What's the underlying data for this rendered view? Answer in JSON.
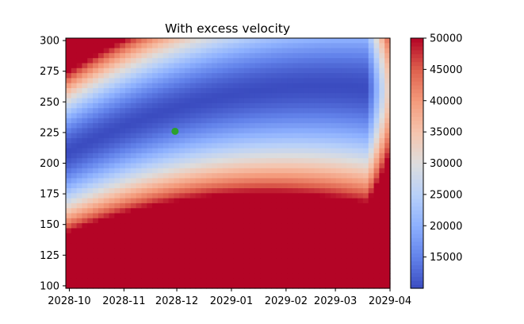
{
  "chart_data": {
    "type": "heatmap",
    "title": "With excess velocity",
    "xlabel": "",
    "ylabel": "",
    "x_range": [
      "2028-09-29",
      "2029-04-01"
    ],
    "x_ticks": [
      "2028-10",
      "2028-11",
      "2028-12",
      "2029-01",
      "2029-02",
      "2029-03",
      "2029-04"
    ],
    "y_range": [
      98,
      302
    ],
    "y_ticks": [
      100,
      125,
      150,
      175,
      200,
      225,
      250,
      275,
      300
    ],
    "colorbar": {
      "colormap": "coolwarm",
      "min": 10000,
      "max": 50000,
      "ticks": [
        15000,
        20000,
        25000,
        30000,
        35000,
        40000,
        45000,
        50000
      ],
      "tick_labels": [
        "15000",
        "20000",
        "25000",
        "30000",
        "35000",
        "40000",
        "45000",
        "50000"
      ]
    },
    "marker": {
      "x": "2028-11-30",
      "y": 226,
      "color": "#2ca02c"
    },
    "grid": false
  }
}
